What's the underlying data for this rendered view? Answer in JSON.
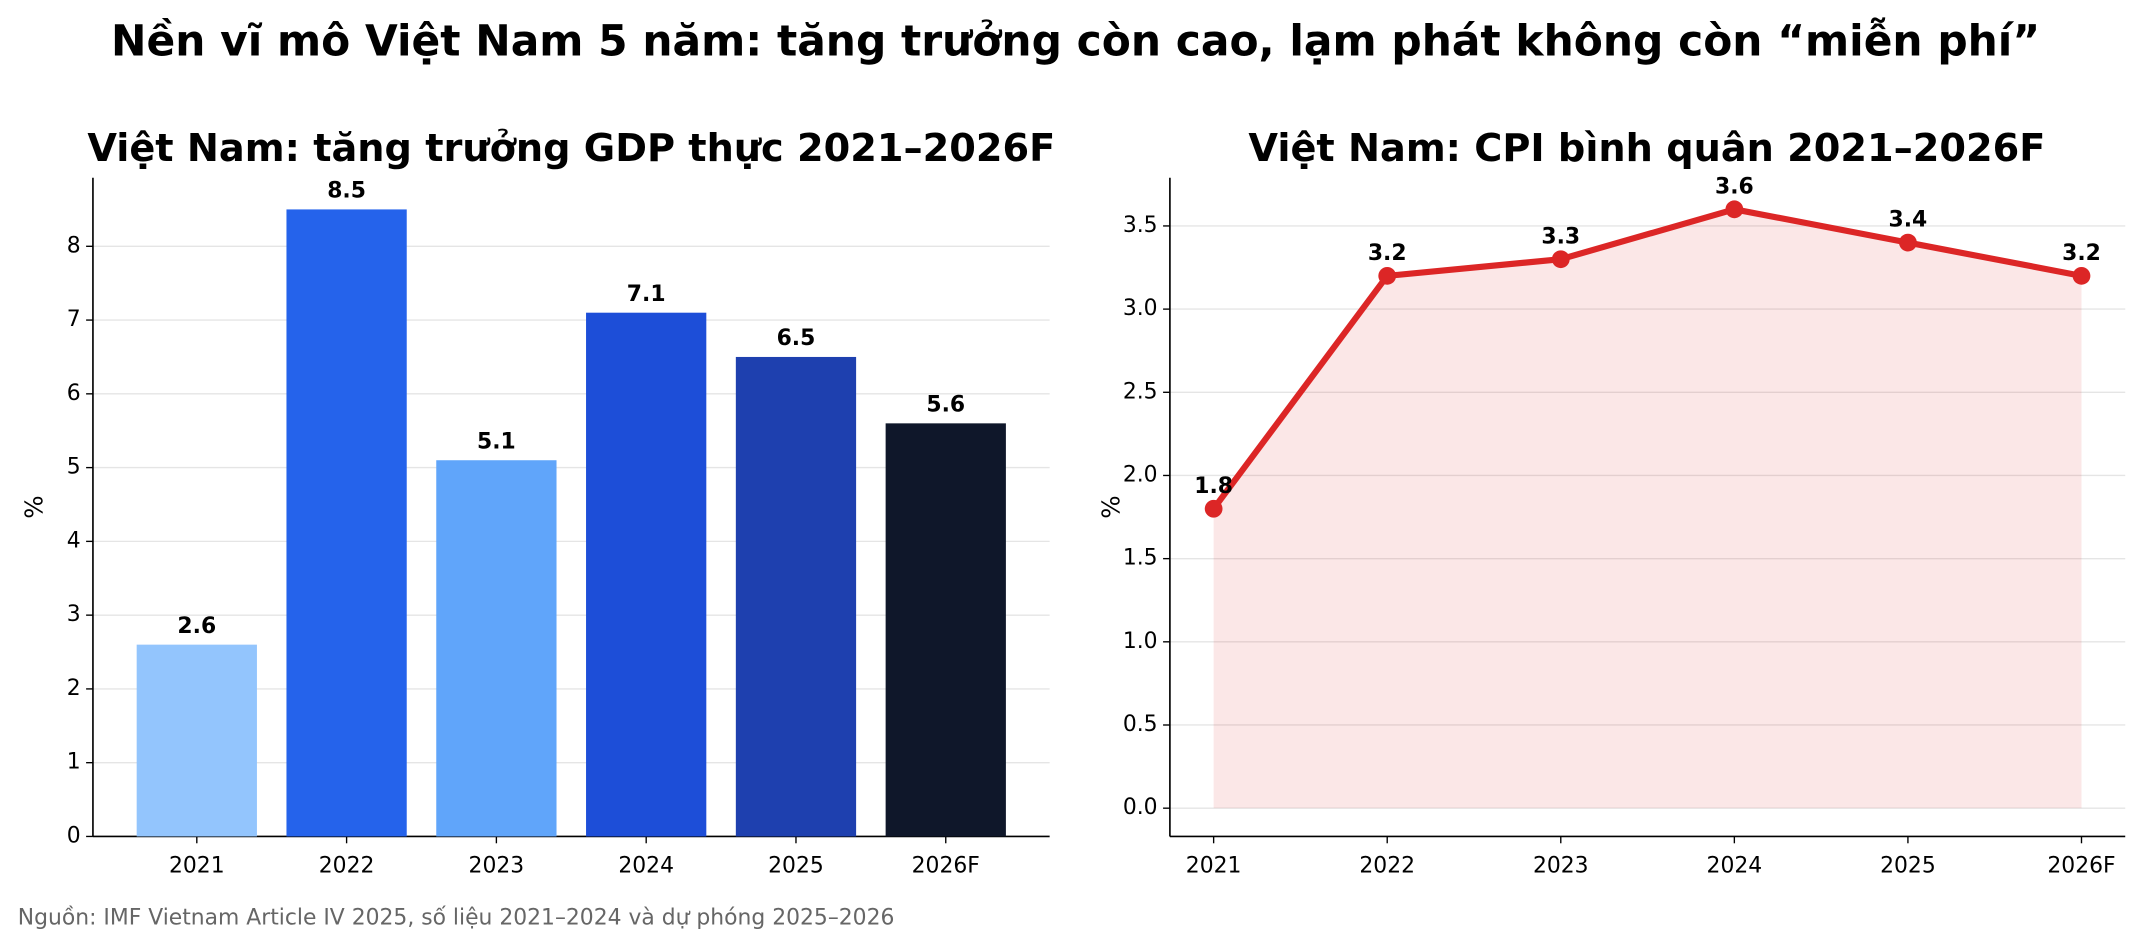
{
  "title": "Nền vĩ mô Việt Nam 5 năm: tăng trưởng còn cao, lạm phát không còn “miễn phí”",
  "source": "Nguồn: IMF Vietnam Article IV 2025, số liệu 2021–2024 và dự phóng 2025–2026",
  "chart_data": [
    {
      "type": "bar",
      "title": "Việt Nam: tăng trưởng GDP thực 2021–2026F",
      "y_label": "%",
      "categories": [
        "2021",
        "2022",
        "2023",
        "2024",
        "2025",
        "2026F"
      ],
      "values": [
        2.6,
        8.5,
        5.1,
        7.1,
        6.5,
        5.6
      ],
      "colors": [
        "#93c5fd",
        "#2563eb",
        "#60a5fa",
        "#1d4ed8",
        "#1e40af",
        "#0f172a"
      ],
      "ylim": [
        0,
        8.93
      ],
      "yticks": [
        0,
        1,
        2,
        3,
        4,
        5,
        6,
        7,
        8
      ],
      "grid": true
    },
    {
      "type": "line",
      "title": "Việt Nam: CPI bình quân 2021–2026F",
      "y_label": "%",
      "categories": [
        "2021",
        "2022",
        "2023",
        "2024",
        "2025",
        "2026F"
      ],
      "values": [
        1.8,
        3.2,
        3.3,
        3.6,
        3.4,
        3.2
      ],
      "color": "#dc2626",
      "fill": true,
      "ylim": [
        -0.17,
        3.79
      ],
      "yticks": [
        {
          "value": 0,
          "label": "0.0"
        },
        0.5,
        {
          "value": 1,
          "label": "1.0"
        },
        1.5,
        {
          "value": 2,
          "label": "2.0"
        },
        2.5,
        {
          "value": 3,
          "label": "3.0"
        },
        3.5
      ],
      "grid": true
    }
  ]
}
